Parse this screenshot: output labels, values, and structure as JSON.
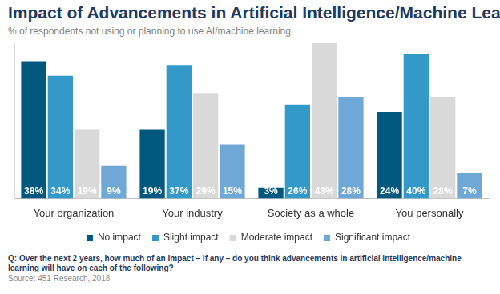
{
  "chart_data": {
    "type": "bar",
    "title": "Impact of Advancements in Artificial Intelligence/Machine Learning",
    "subtitle": "% of respondents not using or planning to use AI/machine learning",
    "categories": [
      "Your organization",
      "Your industry",
      "Society as a whole",
      "You personally"
    ],
    "series": [
      {
        "name": "No impact",
        "color": "#00587f",
        "values": [
          38,
          19,
          3,
          24
        ],
        "value_labels": [
          "38%",
          "19%",
          "3%",
          "24%"
        ]
      },
      {
        "name": "Slight impact",
        "color": "#3399c8",
        "values": [
          34,
          37,
          26,
          40
        ],
        "value_labels": [
          "34%",
          "37%",
          "26%",
          "40%"
        ]
      },
      {
        "name": "Moderate impact",
        "color": "#d9d9d9",
        "values": [
          19,
          29,
          43,
          28
        ],
        "value_labels": [
          "19%",
          "29%",
          "43%",
          "28%"
        ]
      },
      {
        "name": "Significant impact",
        "color": "#6fa8d6",
        "values": [
          9,
          15,
          28,
          7
        ],
        "value_labels": [
          "9%",
          "15%",
          "28%",
          "7%"
        ]
      }
    ],
    "ylim": [
      0,
      43
    ],
    "tick_labels": "x",
    "grid": false,
    "legend": "bottom",
    "data_labels": true,
    "annotations": [
      "Q: Over the next 2 years, how much of an impact – if any – do you think advancements in artificial intelligence/machine learning will have on each of the following?",
      "Source: 451 Research, 2018"
    ]
  }
}
